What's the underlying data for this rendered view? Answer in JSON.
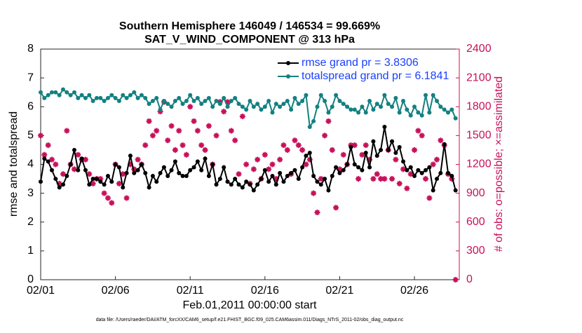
{
  "chart_data": {
    "type": "line",
    "title": "Southern Hemisphere 146049 / 146534 = 99.669%",
    "subtitle": "SAT_V_WIND_COMPONENT @ 313 hPa",
    "xlabel": "Feb.01,2011 00:00:00 start",
    "ylabel": "rmse and totalspread",
    "y2label": "# of obs: o=possible; ×=assimilated",
    "footnote": "data file: /Users/raeder/DAI/ATM_forcXX/CAM6_setup/f.e21.FHIST_BGC.f09_025.CAM6assim.011/Diags_NTrS_2011-02/obs_diag_output.nc",
    "xlim": [
      0,
      28
    ],
    "xticks": [
      {
        "value": 0,
        "label": "02/01"
      },
      {
        "value": 5,
        "label": "02/06"
      },
      {
        "value": 10,
        "label": "02/11"
      },
      {
        "value": 15,
        "label": "02/16"
      },
      {
        "value": 20,
        "label": "02/21"
      },
      {
        "value": 25,
        "label": "02/26"
      }
    ],
    "ylim": [
      0,
      8
    ],
    "yticks": [
      0,
      1,
      2,
      3,
      4,
      5,
      6,
      7,
      8
    ],
    "y2lim": [
      0,
      2400
    ],
    "y2ticks": [
      0,
      300,
      600,
      900,
      1200,
      1500,
      1800,
      2100,
      2400
    ],
    "y2color": "#c8105a",
    "x": [
      0,
      0.25,
      0.5,
      0.75,
      1,
      1.25,
      1.5,
      1.75,
      2,
      2.25,
      2.5,
      2.75,
      3,
      3.25,
      3.5,
      3.75,
      4,
      4.25,
      4.5,
      4.75,
      5,
      5.25,
      5.5,
      5.75,
      6,
      6.25,
      6.5,
      6.75,
      7,
      7.25,
      7.5,
      7.75,
      8,
      8.25,
      8.5,
      8.75,
      9,
      9.25,
      9.5,
      9.75,
      10,
      10.25,
      10.5,
      10.75,
      11,
      11.25,
      11.5,
      11.75,
      12,
      12.25,
      12.5,
      12.75,
      13,
      13.25,
      13.5,
      13.75,
      14,
      14.25,
      14.5,
      14.75,
      15,
      15.25,
      15.5,
      15.75,
      16,
      16.25,
      16.5,
      16.75,
      17,
      17.25,
      17.5,
      17.75,
      18,
      18.25,
      18.5,
      18.75,
      19,
      19.25,
      19.5,
      19.75,
      20,
      20.25,
      20.5,
      20.75,
      21,
      21.25,
      21.5,
      21.75,
      22,
      22.25,
      22.5,
      22.75,
      23,
      23.25,
      23.5,
      23.75,
      24,
      24.25,
      24.5,
      24.75,
      25,
      25.25,
      25.5,
      25.75,
      26,
      26.25,
      26.5,
      26.75,
      27,
      27.25,
      27.5,
      27.75
    ],
    "series": [
      {
        "name": "rmse grand pr = 3.8306",
        "color": "#000000",
        "values": [
          3.4,
          4.2,
          4.1,
          3.8,
          3.5,
          3.2,
          3.3,
          3.6,
          4.0,
          4.5,
          3.8,
          4.2,
          3.8,
          3.3,
          3.5,
          3.5,
          3.4,
          3.3,
          3.6,
          3.4,
          4.0,
          3.9,
          3.2,
          3.7,
          4.3,
          3.7,
          3.8,
          4.0,
          3.7,
          3.2,
          3.6,
          3.4,
          3.7,
          3.9,
          3.6,
          3.8,
          4.1,
          3.7,
          3.6,
          3.6,
          3.8,
          3.9,
          4.1,
          3.8,
          4.2,
          3.6,
          4.0,
          3.3,
          3.5,
          3.9,
          3.4,
          3.3,
          3.5,
          3.3,
          3.2,
          3.4,
          3.3,
          3.1,
          3.3,
          3.5,
          3.8,
          3.4,
          3.6,
          3.3,
          3.7,
          3.4,
          3.6,
          3.7,
          3.8,
          3.5,
          3.9,
          4.3,
          4.4,
          3.6,
          3.4,
          3.3,
          3.5,
          3.1,
          3.6,
          3.9,
          3.7,
          3.8,
          4.0,
          4.6,
          4.0,
          3.9,
          3.8,
          4.4,
          3.9,
          4.8,
          4.3,
          4.5,
          5.3,
          4.5,
          4.8,
          4.4,
          4.6,
          4.1,
          3.8,
          3.9,
          3.6,
          3.8,
          3.7,
          3.8,
          3.9,
          3.1,
          3.5,
          3.7,
          4.7,
          3.7,
          3.6,
          3.1
        ]
      },
      {
        "name": "totalspread grand pr = 6.1841",
        "color": "#138080",
        "values": [
          6.5,
          6.3,
          6.4,
          6.5,
          6.5,
          6.4,
          6.6,
          6.5,
          6.4,
          6.5,
          6.3,
          6.4,
          6.3,
          6.4,
          6.2,
          6.3,
          6.3,
          6.2,
          6.3,
          6.4,
          6.3,
          6.2,
          6.4,
          6.3,
          6.4,
          6.5,
          6.3,
          6.4,
          6.3,
          6.1,
          6.2,
          6.3,
          5.9,
          6.2,
          6.1,
          6.0,
          6.2,
          6.3,
          6.1,
          6.2,
          6.4,
          6.2,
          6.3,
          6.1,
          6.2,
          6.3,
          6.0,
          6.2,
          6.1,
          6.3,
          6.0,
          6.2,
          6.3,
          6.1,
          6.0,
          5.9,
          6.2,
          6.0,
          6.1,
          5.9,
          6.0,
          6.2,
          5.8,
          6.1,
          6.0,
          6.1,
          6.2,
          5.9,
          6.3,
          6.1,
          6.2,
          6.4,
          5.3,
          5.5,
          6.0,
          6.4,
          6.2,
          5.8,
          6.0,
          6.4,
          6.2,
          6.1,
          6.0,
          5.9,
          5.9,
          5.8,
          6.0,
          5.8,
          6.2,
          5.9,
          6.1,
          6.0,
          6.4,
          6.1,
          6.0,
          6.3,
          5.8,
          6.2,
          5.9,
          5.7,
          6.0,
          5.8,
          5.7,
          6.4,
          5.8,
          6.4,
          6.2,
          6.0,
          5.9,
          5.8,
          5.9,
          5.6
        ]
      }
    ],
    "y2_values": [
      1500,
      1300,
      1400,
      1250,
      1200,
      1000,
      1100,
      1550,
      1200,
      1150,
      1300,
      1250,
      1250,
      1100,
      1000,
      1050,
      1050,
      900,
      850,
      800,
      1200,
      1000,
      1100,
      850,
      1200,
      1150,
      1250,
      1200,
      1400,
      1650,
      1500,
      1550,
      1750,
      1850,
      1450,
      1600,
      1350,
      1550,
      1400,
      1300,
      1800,
      1650,
      1550,
      1400,
      1350,
      1600,
      1200,
      1500,
      1850,
      1750,
      1850,
      1550,
      1450,
      1100,
      1700,
      1200,
      1000,
      1150,
      1250,
      1050,
      1300,
      1150,
      1200,
      1050,
      1250,
      1400,
      1350,
      1100,
      1450,
      1400,
      1350,
      1200,
      1250,
      900,
      700,
      1050,
      1500,
      1650,
      1350,
      750,
      1150,
      1300,
      1200,
      1400,
      1400,
      1050,
      1300,
      1400,
      1250,
      1050,
      1100,
      1050,
      1050,
      1350,
      1050,
      1250,
      1000,
      1150,
      950,
      1100,
      1350,
      1550,
      1500,
      1050,
      850,
      1200,
      1250,
      1450,
      1400,
      1100,
      1050,
      0
    ]
  }
}
